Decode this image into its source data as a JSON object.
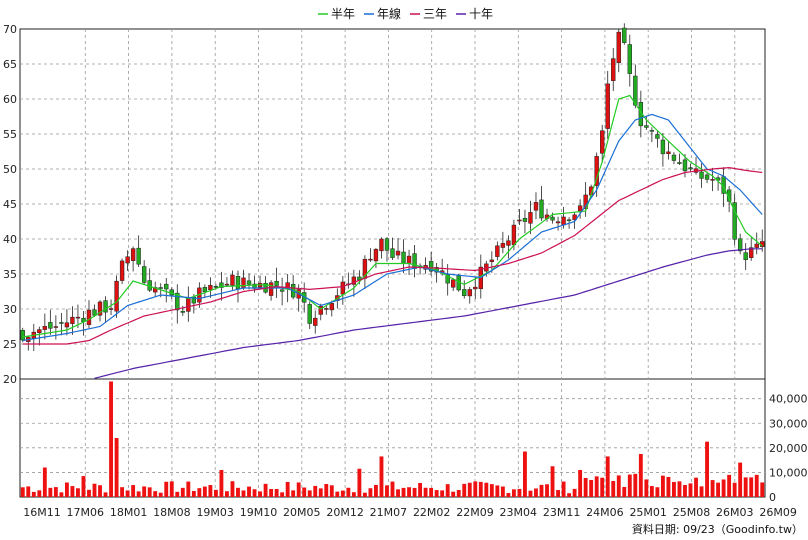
{
  "chart_data": {
    "type": "candlestick",
    "legend": [
      {
        "name": "半年",
        "color": "#22cc22"
      },
      {
        "name": "年線",
        "color": "#1a6fd6"
      },
      {
        "name": "三年",
        "color": "#cc1155"
      },
      {
        "name": "十年",
        "color": "#5522aa"
      }
    ],
    "price_axis": {
      "ylim": [
        20,
        70
      ],
      "ticks": [
        20,
        25,
        30,
        35,
        40,
        45,
        50,
        55,
        60,
        65,
        70
      ]
    },
    "volume_axis": {
      "ylim": [
        0,
        48000
      ],
      "ticks": [
        0,
        10000,
        20000,
        30000,
        40000
      ],
      "tick_labels": [
        "0",
        "10,000",
        "20,000",
        "30,000",
        "40,000"
      ]
    },
    "x_axis": {
      "labels": [
        "16M11",
        "17M06",
        "18M01",
        "18M08",
        "19M03",
        "19M10",
        "20M05",
        "20M12",
        "21M07",
        "22M02",
        "22M09",
        "23M04",
        "23M11",
        "24M06",
        "25M01",
        "25M08",
        "26M03",
        "26M09"
      ]
    },
    "price_path": [
      [
        0,
        26.5
      ],
      [
        6,
        27.5
      ],
      [
        12,
        29.5
      ],
      [
        16,
        30.5
      ],
      [
        18,
        36
      ],
      [
        20,
        39
      ],
      [
        22,
        34
      ],
      [
        26,
        32
      ],
      [
        29,
        30
      ],
      [
        32,
        32
      ],
      [
        35,
        33
      ],
      [
        38,
        34
      ],
      [
        42,
        33.5
      ],
      [
        46,
        33.5
      ],
      [
        50,
        32.5
      ],
      [
        52,
        29
      ],
      [
        55,
        31
      ],
      [
        58,
        33
      ],
      [
        61,
        35
      ],
      [
        63,
        38
      ],
      [
        65,
        39.5
      ],
      [
        67,
        37.5
      ],
      [
        71,
        36.5
      ],
      [
        74,
        36.5
      ],
      [
        77,
        34.5
      ],
      [
        80,
        32.5
      ],
      [
        83,
        35
      ],
      [
        86,
        38
      ],
      [
        88,
        40
      ],
      [
        90,
        42
      ],
      [
        93,
        44.5
      ],
      [
        96,
        43
      ],
      [
        98,
        43.5
      ],
      [
        101,
        44
      ],
      [
        103,
        48
      ],
      [
        105,
        55
      ],
      [
        106,
        62
      ],
      [
        107,
        66
      ],
      [
        108,
        68.5
      ],
      [
        109,
        67
      ],
      [
        110,
        63
      ],
      [
        112,
        57
      ],
      [
        114,
        55
      ],
      [
        116,
        53
      ],
      [
        119,
        51
      ],
      [
        122,
        49
      ],
      [
        125,
        48.5
      ],
      [
        127,
        47
      ],
      [
        128,
        45
      ],
      [
        129,
        41
      ],
      [
        130,
        37.5
      ],
      [
        133,
        38.5
      ],
      [
        134,
        39.5
      ]
    ],
    "half_year_ma_path": [
      [
        0,
        26
      ],
      [
        8,
        27
      ],
      [
        12,
        28.5
      ],
      [
        17,
        31
      ],
      [
        20,
        34
      ],
      [
        24,
        33
      ],
      [
        30,
        31.5
      ],
      [
        36,
        33.2
      ],
      [
        44,
        33.5
      ],
      [
        50,
        32.5
      ],
      [
        54,
        30
      ],
      [
        60,
        33
      ],
      [
        64,
        36.5
      ],
      [
        70,
        36.5
      ],
      [
        75,
        35.5
      ],
      [
        80,
        33.5
      ],
      [
        85,
        35.5
      ],
      [
        90,
        40
      ],
      [
        96,
        43.5
      ],
      [
        102,
        44
      ],
      [
        105,
        51
      ],
      [
        108,
        60
      ],
      [
        110,
        60.5
      ],
      [
        113,
        57
      ],
      [
        117,
        54
      ],
      [
        121,
        51
      ],
      [
        125,
        49
      ],
      [
        127,
        47.5
      ],
      [
        129,
        44
      ],
      [
        131,
        41
      ],
      [
        134,
        39
      ]
    ],
    "year_ma_path": [
      [
        0,
        25.5
      ],
      [
        8,
        26.5
      ],
      [
        14,
        27.5
      ],
      [
        19,
        30.5
      ],
      [
        25,
        32
      ],
      [
        32,
        31.5
      ],
      [
        40,
        33
      ],
      [
        48,
        33
      ],
      [
        54,
        30.5
      ],
      [
        60,
        32
      ],
      [
        66,
        35
      ],
      [
        72,
        36
      ],
      [
        77,
        35
      ],
      [
        83,
        34.5
      ],
      [
        88,
        37
      ],
      [
        94,
        41
      ],
      [
        100,
        42.5
      ],
      [
        104,
        47
      ],
      [
        108,
        54
      ],
      [
        111,
        57
      ],
      [
        114,
        57.8
      ],
      [
        117,
        57
      ],
      [
        120,
        54
      ],
      [
        124,
        50
      ],
      [
        127,
        49
      ],
      [
        130,
        47
      ],
      [
        134,
        43.5
      ]
    ],
    "three_year_ma_path": [
      [
        0,
        25
      ],
      [
        8,
        25
      ],
      [
        12,
        25.5
      ],
      [
        16,
        27
      ],
      [
        22,
        29
      ],
      [
        28,
        30
      ],
      [
        34,
        31
      ],
      [
        40,
        32.5
      ],
      [
        46,
        33.2
      ],
      [
        52,
        32.8
      ],
      [
        58,
        33.2
      ],
      [
        64,
        35
      ],
      [
        70,
        36
      ],
      [
        76,
        35.8
      ],
      [
        82,
        35.5
      ],
      [
        88,
        36.5
      ],
      [
        94,
        38
      ],
      [
        100,
        40.5
      ],
      [
        104,
        43
      ],
      [
        108,
        45.5
      ],
      [
        112,
        47
      ],
      [
        116,
        48.5
      ],
      [
        120,
        49.5
      ],
      [
        125,
        50
      ],
      [
        128,
        50.2
      ],
      [
        131,
        49.8
      ],
      [
        134,
        49.5
      ]
    ],
    "ten_year_ma_path": [
      [
        13,
        20.1
      ],
      [
        20,
        21.5
      ],
      [
        30,
        23
      ],
      [
        40,
        24.5
      ],
      [
        50,
        25.5
      ],
      [
        60,
        27
      ],
      [
        70,
        28
      ],
      [
        80,
        29
      ],
      [
        90,
        30.5
      ],
      [
        100,
        32
      ],
      [
        108,
        34
      ],
      [
        116,
        36
      ],
      [
        124,
        37.7
      ],
      [
        128,
        38.3
      ],
      [
        132,
        38.6
      ],
      [
        134,
        38.6
      ]
    ],
    "volume_spikes": [
      {
        "bar": 16,
        "value": 47000
      },
      {
        "bar": 17,
        "value": 24000
      },
      {
        "bar": 11,
        "value": 8500
      },
      {
        "bar": 4,
        "value": 12000
      },
      {
        "bar": 36,
        "value": 11000
      },
      {
        "bar": 61,
        "value": 11500
      },
      {
        "bar": 65,
        "value": 16500
      },
      {
        "bar": 91,
        "value": 18500
      },
      {
        "bar": 96,
        "value": 12500
      },
      {
        "bar": 106,
        "value": 16500
      },
      {
        "bar": 112,
        "value": 17500
      },
      {
        "bar": 124,
        "value": 22500
      },
      {
        "bar": 130,
        "value": 14000
      },
      {
        "bar": 101,
        "value": 11000
      },
      {
        "bar": 128,
        "value": 9000
      }
    ]
  },
  "footer": {
    "credit": "資料日期: 09/23（Goodinfo.tw）"
  }
}
